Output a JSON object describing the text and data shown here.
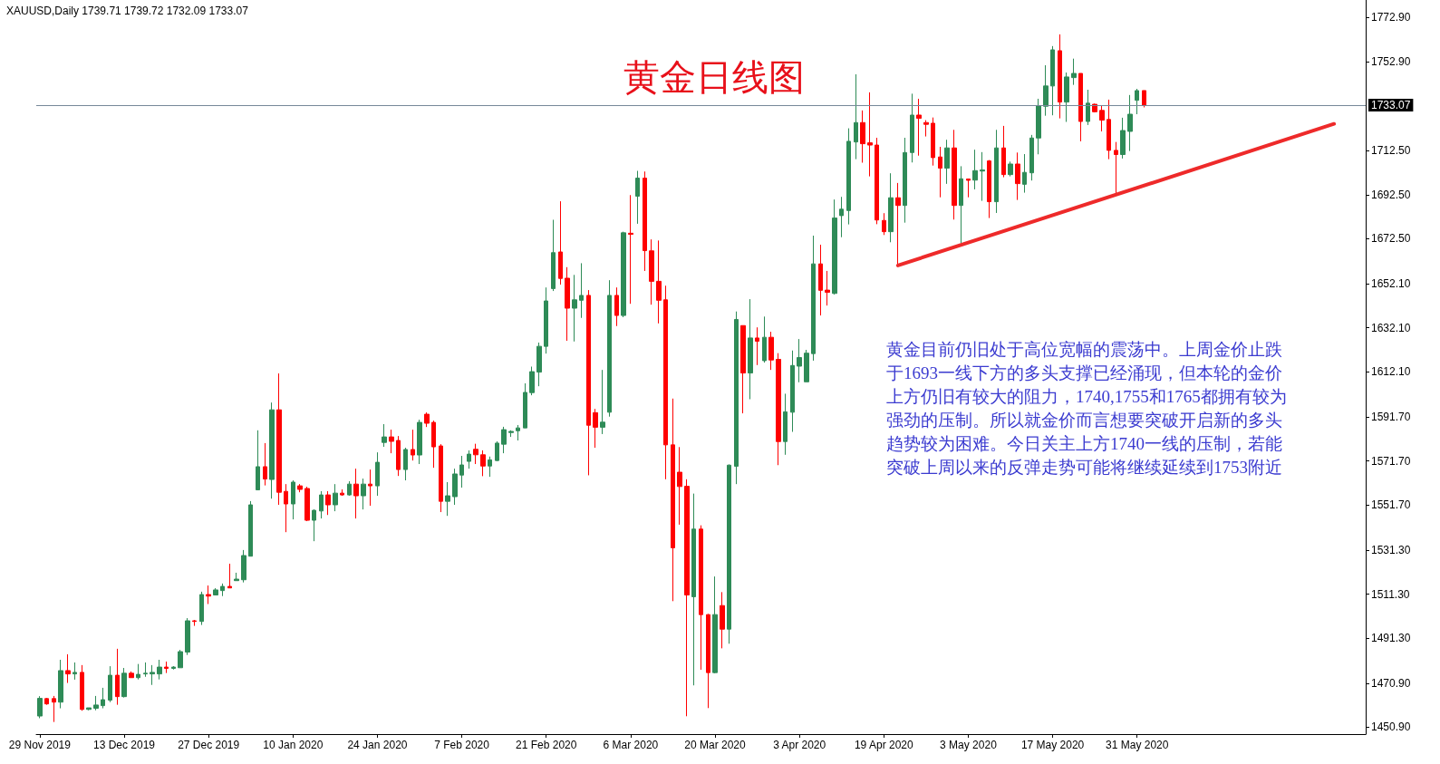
{
  "chart_data": {
    "type": "candlestick",
    "title": "黄金日线图",
    "subtitle": "XAUUSD,Daily 1739.71 1739.72 1732.09 1733.07",
    "annotations": [
      "黄金目前仍旧处于高位宽幅的震荡中。上周金价止跌于1693一线下方的多头支撑已经涌现，但本轮的金价上方仍旧有较大的阻力，1740,1755和1765都拥有较为强劲的压制。所以就金价而言想要突破开启新的多头趋势较为困难。今日关主上方1740一线的压制，若能突破上周以来的反弹走势可能将继续延续到1753附近"
    ],
    "categories": [
      "29 Nov 2019",
      null,
      null,
      null,
      null,
      null,
      null,
      null,
      null,
      null,
      null,
      null,
      "13 Dec 2019",
      null,
      null,
      null,
      null,
      null,
      null,
      null,
      null,
      null,
      null,
      null,
      "27 Dec 2019",
      null,
      null,
      null,
      null,
      null,
      null,
      null,
      null,
      null,
      null,
      null,
      "10 Jan 2020",
      null,
      null,
      null,
      null,
      null,
      null,
      null,
      null,
      null,
      null,
      null,
      "24 Jan 2020",
      null,
      null,
      null,
      null,
      null,
      null,
      null,
      null,
      null,
      null,
      null,
      "7 Feb 2020",
      null,
      null,
      null,
      null,
      null,
      null,
      null,
      null,
      null,
      null,
      null,
      "21 Feb 2020",
      null,
      null,
      null,
      null,
      null,
      null,
      null,
      null,
      null,
      null,
      null,
      "6 Mar 2020",
      null,
      null,
      null,
      null,
      null,
      null,
      null,
      null,
      null,
      null,
      null,
      "20 Mar 2020",
      null,
      null,
      null,
      null,
      null,
      null,
      null,
      null,
      null,
      null,
      null,
      "3 Apr 2020",
      null,
      null,
      null,
      null,
      null,
      null,
      null,
      null,
      null,
      null,
      null,
      "19 Apr 2020",
      null,
      null,
      null,
      null,
      null,
      null,
      null,
      null,
      null,
      null,
      null,
      "3 May 2020",
      null,
      null,
      null,
      null,
      null,
      null,
      null,
      null,
      null,
      null,
      null,
      "17 May 2020",
      null,
      null,
      null,
      null,
      null,
      null,
      null,
      null,
      null,
      null,
      null,
      "31 May 2020",
      null,
      null,
      null,
      null,
      null,
      null,
      null,
      null,
      null,
      null,
      null,
      null,
      null,
      null,
      null,
      null,
      null,
      null,
      null,
      null,
      null,
      null,
      null,
      null,
      null,
      null,
      null,
      null,
      null,
      null,
      null,
      null
    ],
    "ohlc": [
      [
        1456,
        1465,
        1455,
        1464
      ],
      [
        1463.9,
        1464.2,
        1461.1,
        1461.5
      ],
      [
        1463.9,
        1465.1,
        1453.3,
        1462.3
      ],
      [
        1462.3,
        1481.5,
        1459.5,
        1476.6
      ],
      [
        1476.6,
        1484.0,
        1471.0,
        1475.1
      ],
      [
        1475.1,
        1480.3,
        1472.5,
        1475.8
      ],
      [
        1475.8,
        1479.1,
        1458.4,
        1459.0
      ],
      [
        1459.0,
        1459.7,
        1458.6,
        1459.7
      ],
      [
        1459.5,
        1465.1,
        1458.6,
        1461.0
      ],
      [
        1460.7,
        1468.8,
        1459.5,
        1463.4
      ],
      [
        1463.2,
        1478.6,
        1462.3,
        1474.5
      ],
      [
        1474.5,
        1486.5,
        1461.1,
        1464.8
      ],
      [
        1464.8,
        1477.8,
        1464.4,
        1475.4
      ],
      [
        1475.4,
        1476.2,
        1473.4,
        1473.4
      ],
      [
        1473.4,
        1479.6,
        1472.6,
        1474.9
      ],
      [
        1475.1,
        1480.3,
        1473.8,
        1475.4
      ],
      [
        1475.1,
        1479.1,
        1470.1,
        1475.8
      ],
      [
        1475.1,
        1481.5,
        1472.6,
        1478.2
      ],
      [
        1478.2,
        1480.7,
        1475.5,
        1477.6
      ],
      [
        1477.6,
        1478.6,
        1477.1,
        1478.2
      ],
      [
        1477.9,
        1486.0,
        1477.9,
        1485.2
      ],
      [
        1485.0,
        1500.4,
        1483.7,
        1499.2
      ],
      [
        1499.2,
        1499.6,
        1496.9,
        1498.9
      ],
      [
        1498.9,
        1512.4,
        1497.3,
        1511.1
      ],
      [
        1511.1,
        1515.2,
        1506.8,
        1510.4
      ],
      [
        1510.9,
        1514.0,
        1510.9,
        1513.2
      ],
      [
        1512.9,
        1516.1,
        1510.4,
        1514.8
      ],
      [
        1514.8,
        1525.1,
        1514.1,
        1514.1
      ],
      [
        1517.4,
        1521.0,
        1517.4,
        1518.1
      ],
      [
        1517.8,
        1531.3,
        1516.6,
        1528.8
      ],
      [
        1528.5,
        1553.5,
        1528.5,
        1551.8
      ],
      [
        1558.6,
        1585.6,
        1558.6,
        1569.1
      ],
      [
        1569.1,
        1579.8,
        1560.6,
        1563.5
      ],
      [
        1563.3,
        1598.2,
        1554.6,
        1594.9
      ],
      [
        1594.9,
        1611.4,
        1551.8,
        1557.5
      ],
      [
        1557.9,
        1561.2,
        1539.4,
        1552.2
      ],
      [
        1552.2,
        1562.9,
        1545.2,
        1562.1
      ],
      [
        1560.4,
        1561.2,
        1557.5,
        1558.8
      ],
      [
        1559.2,
        1560.0,
        1544.4,
        1544.8
      ],
      [
        1544.8,
        1549.7,
        1535.3,
        1549.3
      ],
      [
        1549.0,
        1558.0,
        1545.6,
        1556.3
      ],
      [
        1556.3,
        1558.0,
        1547.2,
        1551.8
      ],
      [
        1551.8,
        1561.2,
        1548.9,
        1557.1
      ],
      [
        1557.1,
        1558.8,
        1555.9,
        1556.3
      ],
      [
        1556.3,
        1562.5,
        1555.9,
        1561.2
      ],
      [
        1561.2,
        1568.2,
        1545.6,
        1555.9
      ],
      [
        1555.9,
        1563.7,
        1549.7,
        1561.2
      ],
      [
        1561.2,
        1567.8,
        1551.4,
        1560.4
      ],
      [
        1560.4,
        1575.6,
        1555.9,
        1571.1
      ],
      [
        1580.1,
        1588.4,
        1578.1,
        1582.6
      ],
      [
        1582.6,
        1585.9,
        1575.2,
        1580.6
      ],
      [
        1581.0,
        1583.0,
        1564.9,
        1567.8
      ],
      [
        1567.8,
        1577.7,
        1562.9,
        1576.9
      ],
      [
        1576.9,
        1585.9,
        1571.9,
        1574.4
      ],
      [
        1574.4,
        1590.4,
        1570.3,
        1589.2
      ],
      [
        1592.9,
        1593.7,
        1587.1,
        1588.8
      ],
      [
        1589.2,
        1590.0,
        1568.6,
        1578.1
      ],
      [
        1578.5,
        1579.3,
        1548.5,
        1553.4
      ],
      [
        1553.4,
        1562.1,
        1546.8,
        1555.9
      ],
      [
        1555.5,
        1568.2,
        1551.8,
        1565.8
      ],
      [
        1565.3,
        1574.0,
        1559.6,
        1569.9
      ],
      [
        1571.5,
        1576.5,
        1568.2,
        1574.8
      ],
      [
        1577.0,
        1579.5,
        1570.3,
        1574.5
      ],
      [
        1574.5,
        1576.5,
        1564.8,
        1569.4
      ],
      [
        1569.4,
        1573.7,
        1564.5,
        1572.2
      ],
      [
        1571.9,
        1580.6,
        1571.7,
        1579.8
      ],
      [
        1579.3,
        1587.2,
        1575.2,
        1585.9
      ],
      [
        1584.6,
        1585.6,
        1582.6,
        1585.1
      ],
      [
        1585.4,
        1588.0,
        1581.0,
        1586.7
      ],
      [
        1586.7,
        1606.9,
        1586.7,
        1602.8
      ],
      [
        1602.7,
        1614.5,
        1601.5,
        1612.2
      ],
      [
        1612.0,
        1625.4,
        1605.6,
        1623.7
      ],
      [
        1623.7,
        1650.4,
        1620.4,
        1644.3
      ],
      [
        1649.9,
        1681.1,
        1648.8,
        1666.2
      ],
      [
        1666.5,
        1689.5,
        1651.7,
        1654.5
      ],
      [
        1654.6,
        1659.6,
        1626.2,
        1641.0
      ],
      [
        1641.0,
        1656.1,
        1625.9,
        1644.8
      ],
      [
        1644.6,
        1661.4,
        1636.6,
        1646.8
      ],
      [
        1646.8,
        1649.2,
        1565.2,
        1587.9
      ],
      [
        1593.6,
        1595.3,
        1577.7,
        1587.0
      ],
      [
        1587.0,
        1613.0,
        1583.9,
        1589.3
      ],
      [
        1593.8,
        1653.7,
        1591.8,
        1646.8
      ],
      [
        1646.8,
        1650.4,
        1632.9,
        1637.7
      ],
      [
        1637.7,
        1675.7,
        1636.9,
        1675.2
      ],
      [
        1675.0,
        1692.3,
        1643.0,
        1674.5
      ],
      [
        1691.8,
        1703.3,
        1679.3,
        1700.0
      ],
      [
        1700.0,
        1703.0,
        1657.9,
        1667.1
      ],
      [
        1667.0,
        1672.2,
        1642.6,
        1653.2
      ],
      [
        1653.2,
        1671.7,
        1634.1,
        1644.6
      ],
      [
        1644.8,
        1651.2,
        1563.4,
        1579.0
      ],
      [
        1579.0,
        1600.0,
        1508.1,
        1532.3
      ],
      [
        1566.6,
        1578.0,
        1542.8,
        1560.1
      ],
      [
        1560.2,
        1563.4,
        1455.9,
        1510.9
      ],
      [
        1510.1,
        1556.9,
        1469.9,
        1540.8
      ],
      [
        1540.8,
        1542.5,
        1477.0,
        1502.0
      ],
      [
        1502.0,
        1502.3,
        1459.6,
        1475.7
      ],
      [
        1475.7,
        1519.3,
        1475.4,
        1502.0
      ],
      [
        1506.1,
        1512.2,
        1486.7,
        1495.4
      ],
      [
        1495.4,
        1570.1,
        1488.8,
        1569.8
      ],
      [
        1569.3,
        1639.5,
        1561.2,
        1635.9
      ],
      [
        1633.1,
        1633.1,
        1593.3,
        1611.6
      ],
      [
        1611.6,
        1645.1,
        1599.7,
        1627.5
      ],
      [
        1627.5,
        1632.3,
        1615.2,
        1626.0
      ],
      [
        1617.2,
        1637.2,
        1616.3,
        1627.8
      ],
      [
        1627.8,
        1630.3,
        1613.0,
        1617.5
      ],
      [
        1617.8,
        1620.6,
        1569.8,
        1580.5
      ],
      [
        1580.5,
        1602.2,
        1574.5,
        1594.0
      ],
      [
        1593.8,
        1621.8,
        1584.9,
        1615.0
      ],
      [
        1614.7,
        1627.0,
        1607.4,
        1618.6
      ],
      [
        1607.6,
        1622.1,
        1607.6,
        1620.6
      ],
      [
        1620.4,
        1673.9,
        1617.2,
        1661.1
      ],
      [
        1661.1,
        1669.8,
        1637.7,
        1649.1
      ],
      [
        1649.2,
        1657.9,
        1642.2,
        1648.2
      ],
      [
        1647.7,
        1690.3,
        1647.2,
        1681.9
      ],
      [
        1683.0,
        1691.5,
        1673.2,
        1685.9
      ],
      [
        1685.3,
        1722.6,
        1679.0,
        1716.7
      ],
      [
        1716.4,
        1747.1,
        1708.6,
        1725.2
      ],
      [
        1725.2,
        1730.7,
        1707.0,
        1715.6
      ],
      [
        1716.0,
        1738.9,
        1700.8,
        1715.0
      ],
      [
        1715.0,
        1718.3,
        1679.1,
        1681.0
      ],
      [
        1680.8,
        1684.1,
        1674.2,
        1675.7
      ],
      [
        1675.7,
        1702.2,
        1670.9,
        1691.1
      ],
      [
        1691.1,
        1697.8,
        1660.5,
        1687.6
      ],
      [
        1687.6,
        1718.3,
        1679.8,
        1711.6
      ],
      [
        1711.6,
        1738.3,
        1707.1,
        1728.6
      ],
      [
        1728.6,
        1736.0,
        1710.2,
        1727.1
      ],
      [
        1725.2,
        1726.3,
        1718.9,
        1724.4
      ],
      [
        1724.9,
        1727.5,
        1705.7,
        1709.3
      ],
      [
        1709.6,
        1714.2,
        1691.3,
        1704.5
      ],
      [
        1704.5,
        1717.4,
        1697.4,
        1713.7
      ],
      [
        1713.7,
        1721.9,
        1681.2,
        1687.6
      ],
      [
        1687.6,
        1705.4,
        1670.5,
        1699.7
      ],
      [
        1699.6,
        1699.7,
        1691.3,
        1699.0
      ],
      [
        1699.1,
        1712.9,
        1694.9,
        1703.4
      ],
      [
        1703.2,
        1711.8,
        1689.7,
        1703.7
      ],
      [
        1707.8,
        1708.2,
        1681.9,
        1689.3
      ],
      [
        1689.3,
        1721.9,
        1684.2,
        1713.7
      ],
      [
        1713.7,
        1723.7,
        1700.4,
        1701.6
      ],
      [
        1701.6,
        1707.5,
        1700.8,
        1706.4
      ],
      [
        1706.4,
        1711.6,
        1690.1,
        1697.5
      ],
      [
        1697.2,
        1710.9,
        1693.4,
        1702.6
      ],
      [
        1702.4,
        1719.6,
        1698.9,
        1718.2
      ],
      [
        1718.2,
        1736.0,
        1710.8,
        1732.7
      ],
      [
        1732.6,
        1751.2,
        1728.3,
        1741.8
      ],
      [
        1741.8,
        1759.9,
        1728.5,
        1758.2
      ],
      [
        1757.8,
        1765.2,
        1727.1,
        1734.5
      ],
      [
        1734.5,
        1747.9,
        1725.5,
        1745.9
      ],
      [
        1745.6,
        1754.2,
        1742.3,
        1747.5
      ],
      [
        1747.5,
        1747.5,
        1716.7,
        1725.7
      ],
      [
        1725.7,
        1740.1,
        1724.1,
        1734.0
      ],
      [
        1733.5,
        1733.8,
        1729.8,
        1730.1
      ],
      [
        1730.7,
        1733.1,
        1721.2,
        1726.3
      ],
      [
        1726.6,
        1735.6,
        1708.6,
        1712.6
      ],
      [
        1712.6,
        1716.4,
        1693.1,
        1710.7
      ],
      [
        1710.7,
        1727.4,
        1708.9,
        1721.6
      ],
      [
        1721.2,
        1737.7,
        1712.3,
        1729.0
      ],
      [
        1735.3,
        1740.5,
        1729.0,
        1739.7
      ],
      [
        1739.71,
        1739.72,
        1732.09,
        1733.07
      ],
      null,
      null,
      null,
      null,
      null,
      null,
      null,
      null,
      null,
      null,
      null,
      null,
      null,
      null,
      null,
      null,
      null,
      null,
      null,
      null,
      null,
      null,
      null,
      null,
      null,
      null,
      null,
      null,
      null,
      null,
      null
    ],
    "colors": [
      "#2e8b57",
      "#ff0000",
      "#ff0000",
      "#2e8b57",
      "#ff0000",
      "#2e8b57",
      "#ff0000",
      "#2e8b57",
      "#2e8b57",
      "#2e8b57",
      "#2e8b57",
      "#ff0000",
      "#2e8b57",
      "#ff0000",
      "#2e8b57",
      "#2e8b57",
      "#2e8b57",
      "#2e8b57",
      "#ff0000",
      "#2e8b57",
      "#2e8b57",
      "#2e8b57",
      "#ff0000",
      "#2e8b57",
      "#ff0000",
      "#2e8b57",
      "#2e8b57",
      "#ff0000",
      "#2e8b57",
      "#2e8b57",
      "#2e8b57",
      "#2e8b57",
      "#ff0000",
      "#2e8b57",
      "#ff0000",
      "#ff0000",
      "#2e8b57",
      "#ff0000",
      "#ff0000",
      "#2e8b57",
      "#2e8b57",
      "#ff0000",
      "#2e8b57",
      "#ff0000",
      "#2e8b57",
      "#ff0000",
      "#2e8b57",
      "#ff0000",
      "#2e8b57",
      "#2e8b57",
      "#ff0000",
      "#ff0000",
      "#2e8b57",
      "#ff0000",
      "#2e8b57",
      "#ff0000",
      "#ff0000",
      "#ff0000",
      "#2e8b57",
      "#2e8b57",
      "#2e8b57",
      "#2e8b57",
      "#ff0000",
      "#ff0000",
      "#2e8b57",
      "#2e8b57",
      "#2e8b57",
      "#2e8b57",
      "#2e8b57",
      "#2e8b57",
      "#2e8b57",
      "#2e8b57",
      "#2e8b57",
      "#2e8b57",
      "#ff0000",
      "#ff0000",
      "#2e8b57",
      "#2e8b57",
      "#ff0000",
      "#ff0000",
      "#2e8b57",
      "#2e8b57",
      "#ff0000",
      "#2e8b57",
      "#ff0000",
      "#2e8b57",
      "#ff0000",
      "#ff0000",
      "#ff0000",
      "#ff0000",
      "#ff0000",
      "#ff0000",
      "#ff0000",
      "#2e8b57",
      "#ff0000",
      "#ff0000",
      "#2e8b57",
      "#ff0000",
      "#2e8b57",
      "#2e8b57",
      "#ff0000",
      "#2e8b57",
      "#ff0000",
      "#2e8b57",
      "#ff0000",
      "#ff0000",
      "#2e8b57",
      "#2e8b57",
      "#2e8b57",
      "#2e8b57",
      "#2e8b57",
      "#ff0000",
      "#ff0000",
      "#2e8b57",
      "#2e8b57",
      "#2e8b57",
      "#2e8b57",
      "#ff0000",
      "#ff0000",
      "#ff0000",
      "#ff0000",
      "#2e8b57",
      "#ff0000",
      "#2e8b57",
      "#2e8b57",
      "#ff0000",
      "#ff0000",
      "#ff0000",
      "#ff0000",
      "#2e8b57",
      "#ff0000",
      "#2e8b57",
      "#ff0000",
      "#2e8b57",
      "#2e8b57",
      "#ff0000",
      "#2e8b57",
      "#ff0000",
      "#2e8b57",
      "#ff0000",
      "#2e8b57",
      "#2e8b57",
      "#2e8b57",
      "#2e8b57",
      "#2e8b57",
      "#ff0000",
      "#2e8b57",
      "#2e8b57",
      "#ff0000",
      "#2e8b57",
      "#ff0000",
      "#ff0000",
      "#ff0000",
      "#ff0000",
      "#2e8b57",
      "#2e8b57",
      "#2e8b57",
      "#ff0000",
      null,
      null,
      null,
      null,
      null,
      null,
      null,
      null,
      null,
      null,
      null,
      null,
      null,
      null,
      null,
      null,
      null,
      null,
      null,
      null,
      null,
      null,
      null,
      null,
      null,
      null,
      null,
      null,
      null,
      null,
      null
    ],
    "series": [
      {
        "type": "line",
        "color": "#ee2a2a",
        "values": [
          null,
          null,
          null,
          null,
          null,
          null,
          null,
          null,
          null,
          null,
          null,
          null,
          null,
          null,
          null,
          null,
          null,
          null,
          null,
          null,
          null,
          null,
          null,
          null,
          null,
          null,
          null,
          null,
          null,
          null,
          null,
          null,
          null,
          null,
          null,
          null,
          null,
          null,
          null,
          null,
          null,
          null,
          null,
          null,
          null,
          null,
          null,
          null,
          null,
          null,
          null,
          null,
          null,
          null,
          null,
          null,
          null,
          null,
          null,
          null,
          null,
          null,
          null,
          null,
          null,
          null,
          null,
          null,
          null,
          null,
          null,
          null,
          null,
          null,
          null,
          null,
          null,
          null,
          null,
          null,
          null,
          null,
          null,
          null,
          null,
          null,
          null,
          null,
          null,
          null,
          null,
          null,
          null,
          null,
          null,
          null,
          null,
          null,
          null,
          null,
          null,
          null,
          null,
          null,
          null,
          null,
          null,
          null,
          null,
          null,
          null,
          null,
          null,
          null,
          null,
          null,
          null,
          null,
          null,
          null,
          null,
          null,
          1660.4,
          null,
          null,
          null,
          null,
          null,
          null,
          null,
          null,
          null,
          null,
          null,
          null,
          null,
          null,
          null,
          null,
          null,
          null,
          null,
          null,
          null,
          null,
          null,
          null,
          null,
          null,
          null,
          null,
          null,
          null,
          null,
          null,
          null,
          null,
          null,
          null,
          null,
          null,
          null,
          null,
          null,
          null,
          null,
          null,
          null,
          null,
          null,
          null,
          null,
          null,
          null,
          null,
          null,
          null,
          null,
          null,
          null,
          null,
          null,
          null,
          null,
          1724.6,
          null,
          null,
          null,
          null
        ]
      }
    ],
    "ref_lines": [
      {
        "axis": "y",
        "value": 1733.07,
        "label": "1733.07",
        "color": "#778899"
      }
    ],
    "ylim": [
      1447.8,
      1780.8
    ],
    "yticks": [
      {
        "value": 1450.9,
        "label": "1450.90"
      },
      {
        "value": 1470.9,
        "label": "1470.90"
      },
      {
        "value": 1491.3,
        "label": "1491.30"
      },
      {
        "value": 1511.3,
        "label": "1511.30"
      },
      {
        "value": 1531.3,
        "label": "1531.30"
      },
      {
        "value": 1551.7,
        "label": "1551.70"
      },
      {
        "value": 1571.7,
        "label": "1571.70"
      },
      {
        "value": 1591.7,
        "label": "1591.70"
      },
      {
        "value": 1612.1,
        "label": "1612.10"
      },
      {
        "value": 1632.1,
        "label": "1632.10"
      },
      {
        "value": 1652.1,
        "label": "1652.10"
      },
      {
        "value": 1672.5,
        "label": "1672.50"
      },
      {
        "value": 1692.5,
        "label": "1692.50"
      },
      {
        "value": 1712.5,
        "label": "1712.50"
      },
      {
        "value": 1752.9,
        "label": "1752.90"
      },
      {
        "value": 1772.9,
        "label": "1772.90"
      }
    ],
    "grid": false,
    "marker": "none"
  }
}
